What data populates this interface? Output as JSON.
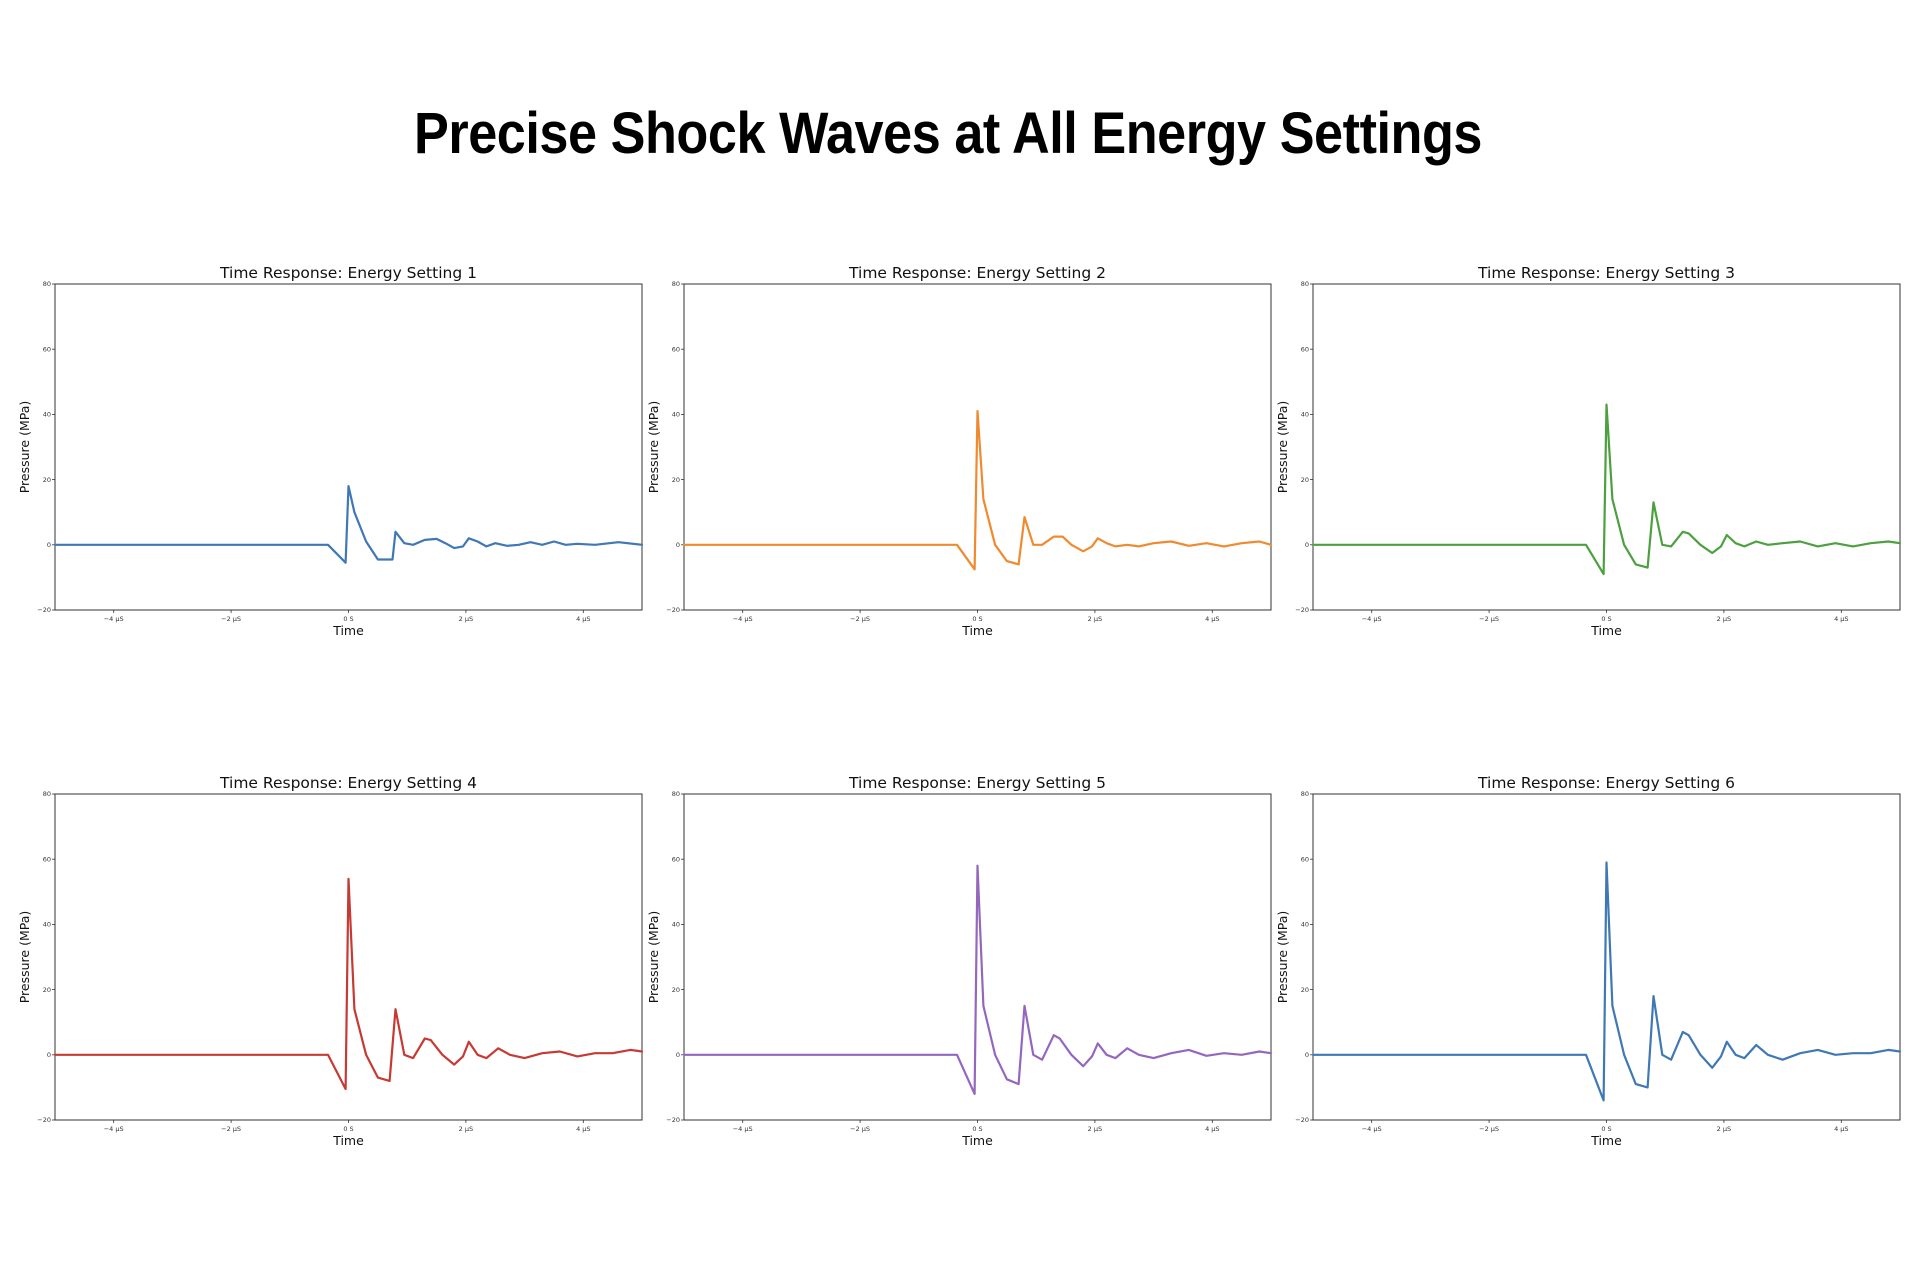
{
  "page": {
    "title": "Precise Shock Waves at All Energy Settings"
  },
  "chart_data": [
    {
      "type": "line",
      "title": "Time Response: Energy Setting 1",
      "xlabel": "Time",
      "ylabel": "Pressure (MPa)",
      "xlim": [
        -5,
        5
      ],
      "ylim": [
        -20,
        80
      ],
      "xticks": [
        -4,
        -2,
        0,
        2,
        4
      ],
      "xtick_labels": [
        "−4 µS",
        "−2 µS",
        "0 S",
        "2 µS",
        "4 µS"
      ],
      "yticks": [
        -20,
        0,
        20,
        40,
        60,
        80
      ],
      "ytick_labels": [
        "−20",
        "0",
        "20",
        "40",
        "60",
        "80"
      ],
      "grid": false,
      "color": "#3f78b4",
      "series": [
        {
          "x": [
            -5,
            -0.35,
            -0.05,
            0,
            0.1,
            0.3,
            0.5,
            0.75,
            0.8,
            0.95,
            1.1,
            1.3,
            1.5,
            1.65,
            1.8,
            1.95,
            2.05,
            2.2,
            2.35,
            2.5,
            2.7,
            2.9,
            3.1,
            3.3,
            3.5,
            3.7,
            3.9,
            4.2,
            4.6,
            5
          ],
          "y": [
            0,
            0,
            -5.5,
            18,
            10,
            1,
            -4.5,
            -4.5,
            4,
            0.5,
            0,
            1.5,
            1.8,
            0.5,
            -1,
            -0.5,
            2,
            1,
            -0.5,
            0.5,
            -0.3,
            0,
            0.8,
            0,
            1,
            0,
            0.3,
            0,
            0.8,
            0
          ]
        }
      ]
    },
    {
      "type": "line",
      "title": "Time Response: Energy Setting 2",
      "xlabel": "Time",
      "ylabel": "Pressure (MPa)",
      "xlim": [
        -5,
        5
      ],
      "ylim": [
        -20,
        80
      ],
      "xticks": [
        -4,
        -2,
        0,
        2,
        4
      ],
      "xtick_labels": [
        "−4 µS",
        "−2 µS",
        "0 S",
        "2 µS",
        "4 µS"
      ],
      "yticks": [
        -20,
        0,
        20,
        40,
        60,
        80
      ],
      "ytick_labels": [
        "−20",
        "0",
        "20",
        "40",
        "60",
        "80"
      ],
      "grid": false,
      "color": "#ef8a2e",
      "series": [
        {
          "x": [
            -5,
            -0.35,
            -0.05,
            0,
            0.1,
            0.3,
            0.5,
            0.7,
            0.8,
            0.95,
            1.1,
            1.3,
            1.45,
            1.6,
            1.8,
            1.95,
            2.05,
            2.2,
            2.35,
            2.55,
            2.75,
            3,
            3.3,
            3.6,
            3.9,
            4.2,
            4.5,
            4.8,
            5
          ],
          "y": [
            0,
            0,
            -7.5,
            41,
            14,
            0,
            -5,
            -6,
            8.5,
            0,
            0,
            2.5,
            2.5,
            0,
            -2,
            -0.5,
            2,
            0.5,
            -0.5,
            0,
            -0.5,
            0.5,
            1,
            -0.3,
            0.5,
            -0.5,
            0.5,
            1,
            0
          ]
        }
      ]
    },
    {
      "type": "line",
      "title": "Time Response: Energy Setting 3",
      "xlabel": "Time",
      "ylabel": "Pressure (MPa)",
      "xlim": [
        -5,
        5
      ],
      "ylim": [
        -20,
        80
      ],
      "xticks": [
        -4,
        -2,
        0,
        2,
        4
      ],
      "xtick_labels": [
        "−4 µS",
        "−2 µS",
        "0 S",
        "2 µS",
        "4 µS"
      ],
      "yticks": [
        -20,
        0,
        20,
        40,
        60,
        80
      ],
      "ytick_labels": [
        "−20",
        "0",
        "20",
        "40",
        "60",
        "80"
      ],
      "grid": false,
      "color": "#4ca03f",
      "series": [
        {
          "x": [
            -5,
            -0.35,
            -0.05,
            0,
            0.1,
            0.3,
            0.5,
            0.7,
            0.8,
            0.95,
            1.1,
            1.3,
            1.4,
            1.6,
            1.8,
            1.95,
            2.05,
            2.2,
            2.35,
            2.55,
            2.75,
            3,
            3.3,
            3.6,
            3.9,
            4.2,
            4.5,
            4.8,
            5
          ],
          "y": [
            0,
            0,
            -9,
            43,
            14,
            0,
            -6,
            -7,
            13,
            0,
            -0.5,
            4,
            3.5,
            0,
            -2.5,
            -0.5,
            3,
            0.5,
            -0.5,
            1,
            0,
            0.5,
            1,
            -0.5,
            0.5,
            -0.5,
            0.5,
            1,
            0.5
          ]
        }
      ]
    },
    {
      "type": "line",
      "title": "Time Response: Energy Setting 4",
      "xlabel": "Time",
      "ylabel": "Pressure (MPa)",
      "xlim": [
        -5,
        5
      ],
      "ylim": [
        -20,
        80
      ],
      "xticks": [
        -4,
        -2,
        0,
        2,
        4
      ],
      "xtick_labels": [
        "−4 µS",
        "−2 µS",
        "0 S",
        "2 µS",
        "4 µS"
      ],
      "yticks": [
        -20,
        0,
        20,
        40,
        60,
        80
      ],
      "ytick_labels": [
        "−20",
        "0",
        "20",
        "40",
        "60",
        "80"
      ],
      "grid": false,
      "color": "#c63a33",
      "series": [
        {
          "x": [
            -5,
            -0.35,
            -0.05,
            0,
            0.1,
            0.3,
            0.5,
            0.7,
            0.8,
            0.95,
            1.1,
            1.3,
            1.4,
            1.6,
            1.8,
            1.95,
            2.05,
            2.2,
            2.35,
            2.55,
            2.75,
            3,
            3.3,
            3.6,
            3.9,
            4.2,
            4.5,
            4.8,
            5
          ],
          "y": [
            0,
            0,
            -10.5,
            54,
            14,
            0,
            -7,
            -8,
            14,
            0,
            -1,
            5,
            4.5,
            0,
            -3,
            -0.5,
            4,
            0,
            -1,
            2,
            0,
            -1,
            0.5,
            1,
            -0.5,
            0.5,
            0.5,
            1.5,
            1
          ]
        }
      ]
    },
    {
      "type": "line",
      "title": "Time Response: Energy Setting 5",
      "xlabel": "Time",
      "ylabel": "Pressure (MPa)",
      "xlim": [
        -5,
        5
      ],
      "ylim": [
        -20,
        80
      ],
      "xticks": [
        -4,
        -2,
        0,
        2,
        4
      ],
      "xtick_labels": [
        "−4 µS",
        "−2 µS",
        "0 S",
        "2 µS",
        "4 µS"
      ],
      "yticks": [
        -20,
        0,
        20,
        40,
        60,
        80
      ],
      "ytick_labels": [
        "−20",
        "0",
        "20",
        "40",
        "60",
        "80"
      ],
      "grid": false,
      "color": "#9467bd",
      "series": [
        {
          "x": [
            -5,
            -0.35,
            -0.05,
            0,
            0.1,
            0.3,
            0.5,
            0.7,
            0.8,
            0.95,
            1.1,
            1.3,
            1.4,
            1.6,
            1.8,
            1.95,
            2.05,
            2.2,
            2.35,
            2.55,
            2.75,
            3,
            3.3,
            3.6,
            3.9,
            4.2,
            4.5,
            4.8,
            5
          ],
          "y": [
            0,
            0,
            -12,
            58,
            15,
            0,
            -7.5,
            -9,
            15,
            0,
            -1.5,
            6,
            5,
            0,
            -3.5,
            -0.5,
            3.5,
            0,
            -1,
            2,
            0,
            -1,
            0.5,
            1.5,
            -0.3,
            0.5,
            0,
            1,
            0.5
          ]
        }
      ]
    },
    {
      "type": "line",
      "title": "Time Response: Energy Setting 6",
      "xlabel": "Time",
      "ylabel": "Pressure (MPa)",
      "xlim": [
        -5,
        5
      ],
      "ylim": [
        -20,
        80
      ],
      "xticks": [
        -4,
        -2,
        0,
        2,
        4
      ],
      "xtick_labels": [
        "−4 µS",
        "−2 µS",
        "0 S",
        "2 µS",
        "4 µS"
      ],
      "yticks": [
        -20,
        0,
        20,
        40,
        60,
        80
      ],
      "ytick_labels": [
        "−20",
        "0",
        "20",
        "40",
        "60",
        "80"
      ],
      "grid": false,
      "color": "#3f78b4",
      "series": [
        {
          "x": [
            -5,
            -0.35,
            -0.05,
            0,
            0.1,
            0.3,
            0.5,
            0.7,
            0.8,
            0.95,
            1.1,
            1.3,
            1.4,
            1.6,
            1.8,
            1.95,
            2.05,
            2.2,
            2.35,
            2.55,
            2.75,
            3,
            3.3,
            3.6,
            3.9,
            4.2,
            4.5,
            4.8,
            5
          ],
          "y": [
            0,
            0,
            -14,
            59,
            15,
            0,
            -9,
            -10,
            18,
            0,
            -1.5,
            7,
            6,
            0,
            -4,
            -0.5,
            4,
            0,
            -1,
            3,
            0,
            -1.5,
            0.5,
            1.5,
            0,
            0.5,
            0.5,
            1.5,
            1
          ]
        }
      ]
    }
  ]
}
